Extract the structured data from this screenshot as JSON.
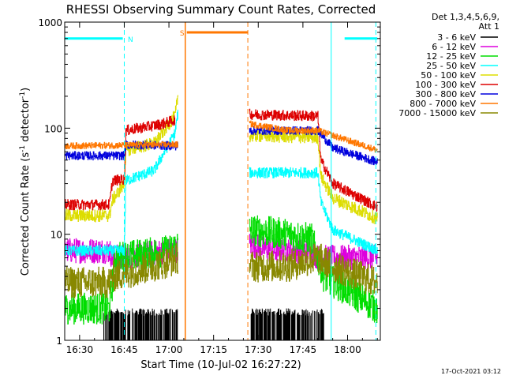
{
  "chart_data": {
    "type": "line",
    "title": "RHESSI Observing Summary Count Rates, Corrected",
    "xlabel": "Start Time (10-Jul-02 16:27:22)",
    "ylabel": "Corrected Count Rate (s",
    "ylabel_sup1": "-1",
    "ylabel_mid": " detector",
    "ylabel_sup2": "-1",
    "ylabel_end": ")",
    "yscale": "log",
    "ylim": [
      1,
      1000
    ],
    "xlim_minutes": [
      -5,
      101
    ],
    "x_ticks": [
      {
        "m": 0,
        "label": "16:30"
      },
      {
        "m": 15,
        "label": "16:45"
      },
      {
        "m": 30,
        "label": "17:00"
      },
      {
        "m": 45,
        "label": "17:15"
      },
      {
        "m": 60,
        "label": "17:30"
      },
      {
        "m": 75,
        "label": "17:45"
      },
      {
        "m": 90,
        "label": "18:00"
      }
    ],
    "y_ticks": [
      {
        "v": 1,
        "label": "1"
      },
      {
        "v": 10,
        "label": "10"
      },
      {
        "v": 100,
        "label": "100"
      },
      {
        "v": 1000,
        "label": "1000"
      }
    ],
    "legend_header": [
      "Det 1,3,4,5,6,9,",
      "Att 1"
    ],
    "timestamp": "17-Oct-2021 03:12",
    "gaps": [
      [
        33.5,
        57
      ]
    ],
    "series": [
      {
        "name": "3 - 6 keV",
        "color": "#000000",
        "before": [
          [
            8,
            1
          ],
          [
            33.5,
            1
          ]
        ],
        "after": [
          [
            57,
            1
          ],
          [
            82,
            1
          ]
        ],
        "noise": 1.0,
        "spiky": true
      },
      {
        "name": "6 - 12 keV",
        "color": "#dd00dd",
        "before": [
          [
            -5,
            7
          ],
          [
            10,
            7
          ],
          [
            11,
            6
          ],
          [
            30,
            7
          ],
          [
            33,
            7
          ]
        ],
        "after": [
          [
            57,
            8
          ],
          [
            65,
            7
          ],
          [
            78,
            7
          ],
          [
            80,
            6
          ],
          [
            100,
            6
          ]
        ],
        "noise": 0.12
      },
      {
        "name": "12 - 25 keV",
        "color": "#00dd00",
        "before": [
          [
            -5,
            2
          ],
          [
            10,
            2
          ],
          [
            12,
            6
          ],
          [
            30,
            7
          ],
          [
            33,
            8
          ]
        ],
        "after": [
          [
            57,
            11
          ],
          [
            70,
            10
          ],
          [
            78,
            9
          ],
          [
            82,
            4
          ],
          [
            100,
            2
          ]
        ],
        "noise": 0.15
      },
      {
        "name": "25 - 50 keV",
        "color": "#00ffff",
        "before": [
          [
            -5,
            7
          ],
          [
            15,
            7
          ],
          [
            15.5,
            32
          ],
          [
            25,
            40
          ],
          [
            32,
            90
          ],
          [
            33,
            140
          ]
        ],
        "after": [
          [
            57,
            38
          ],
          [
            70,
            38
          ],
          [
            80,
            38
          ],
          [
            81,
            20
          ],
          [
            85,
            11
          ],
          [
            100,
            7
          ]
        ],
        "noise": 0.05
      },
      {
        "name": "50 - 100 keV",
        "color": "#dddd00",
        "before": [
          [
            -5,
            15
          ],
          [
            10,
            15
          ],
          [
            11,
            21
          ],
          [
            15,
            30
          ],
          [
            15.5,
            62
          ],
          [
            25,
            72
          ],
          [
            32,
            130
          ],
          [
            33,
            200
          ]
        ],
        "after": [
          [
            57,
            85
          ],
          [
            80,
            82
          ],
          [
            81,
            35
          ],
          [
            85,
            22
          ],
          [
            100,
            14
          ]
        ],
        "noise": 0.06
      },
      {
        "name": "100 - 300 keV",
        "color": "#dd0000",
        "before": [
          [
            -5,
            19
          ],
          [
            10,
            19
          ],
          [
            11,
            32
          ],
          [
            15,
            33
          ],
          [
            15.5,
            95
          ],
          [
            28,
            110
          ],
          [
            32,
            120
          ]
        ],
        "after": [
          [
            57,
            135
          ],
          [
            80,
            130
          ],
          [
            81,
            50
          ],
          [
            85,
            30
          ],
          [
            100,
            18
          ]
        ],
        "noise": 0.05
      },
      {
        "name": "300 - 800 keV",
        "color": "#0000dd",
        "before": [
          [
            -5,
            55
          ],
          [
            15,
            55
          ],
          [
            15.5,
            70
          ],
          [
            33,
            68
          ]
        ],
        "after": [
          [
            57,
            95
          ],
          [
            80,
            95
          ],
          [
            85,
            65
          ],
          [
            100,
            48
          ]
        ],
        "noise": 0.04
      },
      {
        "name": "800 - 7000 keV",
        "color": "#ff7700",
        "before": [
          [
            -5,
            68
          ],
          [
            33,
            70
          ]
        ],
        "after": [
          [
            57,
            110
          ],
          [
            70,
            95
          ],
          [
            80,
            95
          ],
          [
            100,
            62
          ]
        ],
        "noise": 0.03
      },
      {
        "name": "7000 - 15000 keV",
        "color": "#888800",
        "before": [
          [
            -5,
            3.5
          ],
          [
            10,
            3.5
          ],
          [
            11,
            4
          ],
          [
            30,
            5.5
          ],
          [
            33,
            6
          ]
        ],
        "after": [
          [
            57,
            5
          ],
          [
            70,
            5
          ],
          [
            80,
            6
          ],
          [
            85,
            5
          ],
          [
            100,
            3.5
          ]
        ],
        "noise": 0.15
      }
    ],
    "annotations": {
      "night_label": "N",
      "night_segments": [
        [
          -5,
          14.5
        ],
        [
          89,
          100
        ]
      ],
      "night_level": 700,
      "night_boundaries": [
        15,
        84.5,
        99.5
      ],
      "saa_label": "S",
      "saa_segment": [
        36,
        56.5
      ],
      "saa_level": 800,
      "saa_boundaries": [
        35.5,
        56.5
      ]
    }
  }
}
